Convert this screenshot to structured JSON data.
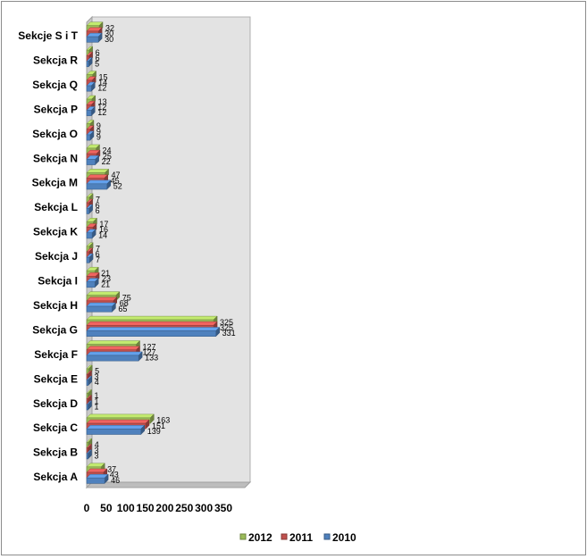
{
  "chart_data": {
    "type": "bar",
    "orientation": "horizontal",
    "style": "3d-clustered",
    "categories": [
      "Sekcja A",
      "Sekcja B",
      "Sekcja C",
      "Sekcja D",
      "Sekcja E",
      "Sekcja F",
      "Sekcja G",
      "Sekcja H",
      "Sekcja I",
      "Sekcja J",
      "Sekcja K",
      "Sekcja L",
      "Sekcja M",
      "Sekcja N",
      "Sekcja O",
      "Sekcja P",
      "Sekcja Q",
      "Sekcja R",
      "Sekcje S i T"
    ],
    "series": [
      {
        "name": "2012",
        "color": "#9bbb59",
        "values": [
          37,
          4,
          163,
          1,
          5,
          127,
          325,
          75,
          21,
          7,
          17,
          7,
          47,
          24,
          9,
          13,
          15,
          6,
          32
        ]
      },
      {
        "name": "2011",
        "color": "#c0504d",
        "values": [
          43,
          3,
          151,
          1,
          3,
          127,
          325,
          68,
          23,
          6,
          16,
          6,
          45,
          25,
          9,
          12,
          14,
          6,
          30
        ]
      },
      {
        "name": "2010",
        "color": "#4f81bd",
        "values": [
          46,
          3,
          139,
          1,
          4,
          133,
          331,
          65,
          21,
          7,
          14,
          6,
          52,
          22,
          9,
          12,
          12,
          5,
          30
        ]
      }
    ],
    "x_ticks": [
      "0",
      "50",
      "100",
      "150",
      "200",
      "250",
      "300",
      "350"
    ],
    "xlim": [
      0,
      350
    ],
    "grid": false,
    "legend_position": "bottom",
    "legend_order": [
      "2012",
      "2011",
      "2010"
    ],
    "plot_background": "#e3e3e3"
  }
}
